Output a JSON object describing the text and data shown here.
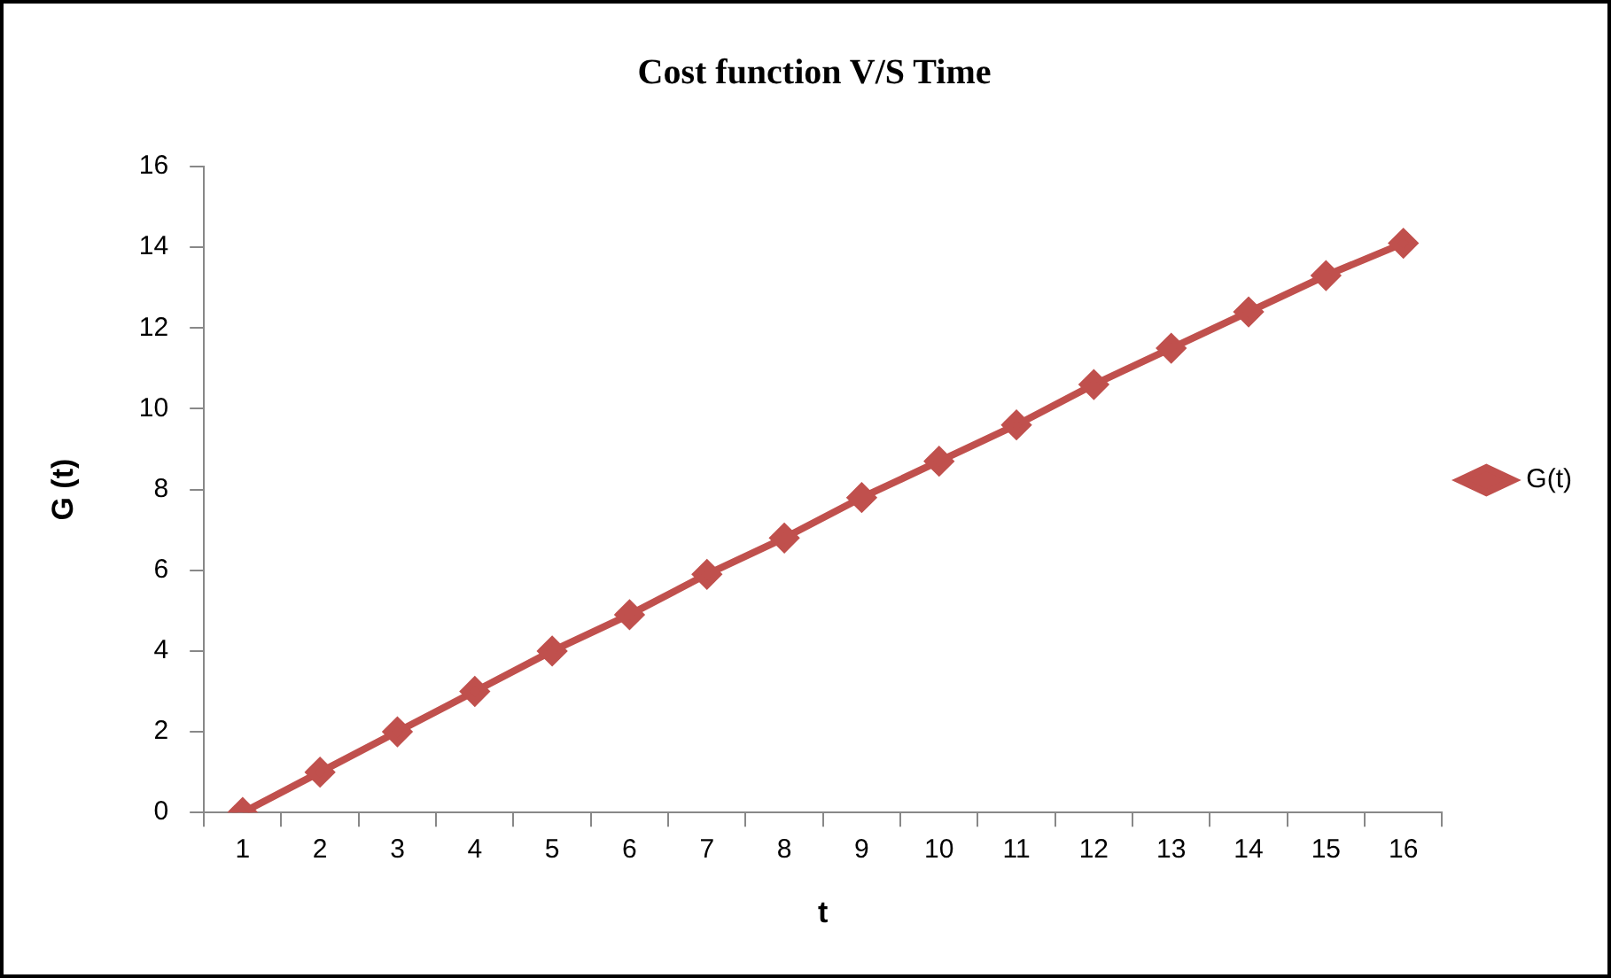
{
  "chart_data": {
    "type": "line",
    "title": "Cost function V/S Time",
    "xlabel": "t",
    "ylabel": "G (t)",
    "categories": [
      "1",
      "2",
      "3",
      "4",
      "5",
      "6",
      "7",
      "8",
      "9",
      "10",
      "11",
      "12",
      "13",
      "14",
      "15",
      "16"
    ],
    "series": [
      {
        "name": "G(t)",
        "color": "#c0504d",
        "values": [
          0,
          1.0,
          2.0,
          3.0,
          4.0,
          4.9,
          5.9,
          6.8,
          7.8,
          8.7,
          9.6,
          10.6,
          11.5,
          12.4,
          13.3,
          14.1
        ]
      }
    ],
    "ylim": [
      0,
      16
    ],
    "yticks": [
      0,
      2,
      4,
      6,
      8,
      10,
      12,
      14,
      16
    ],
    "grid": false,
    "legend": "right",
    "marker": "diamond",
    "line_style": "solid"
  }
}
